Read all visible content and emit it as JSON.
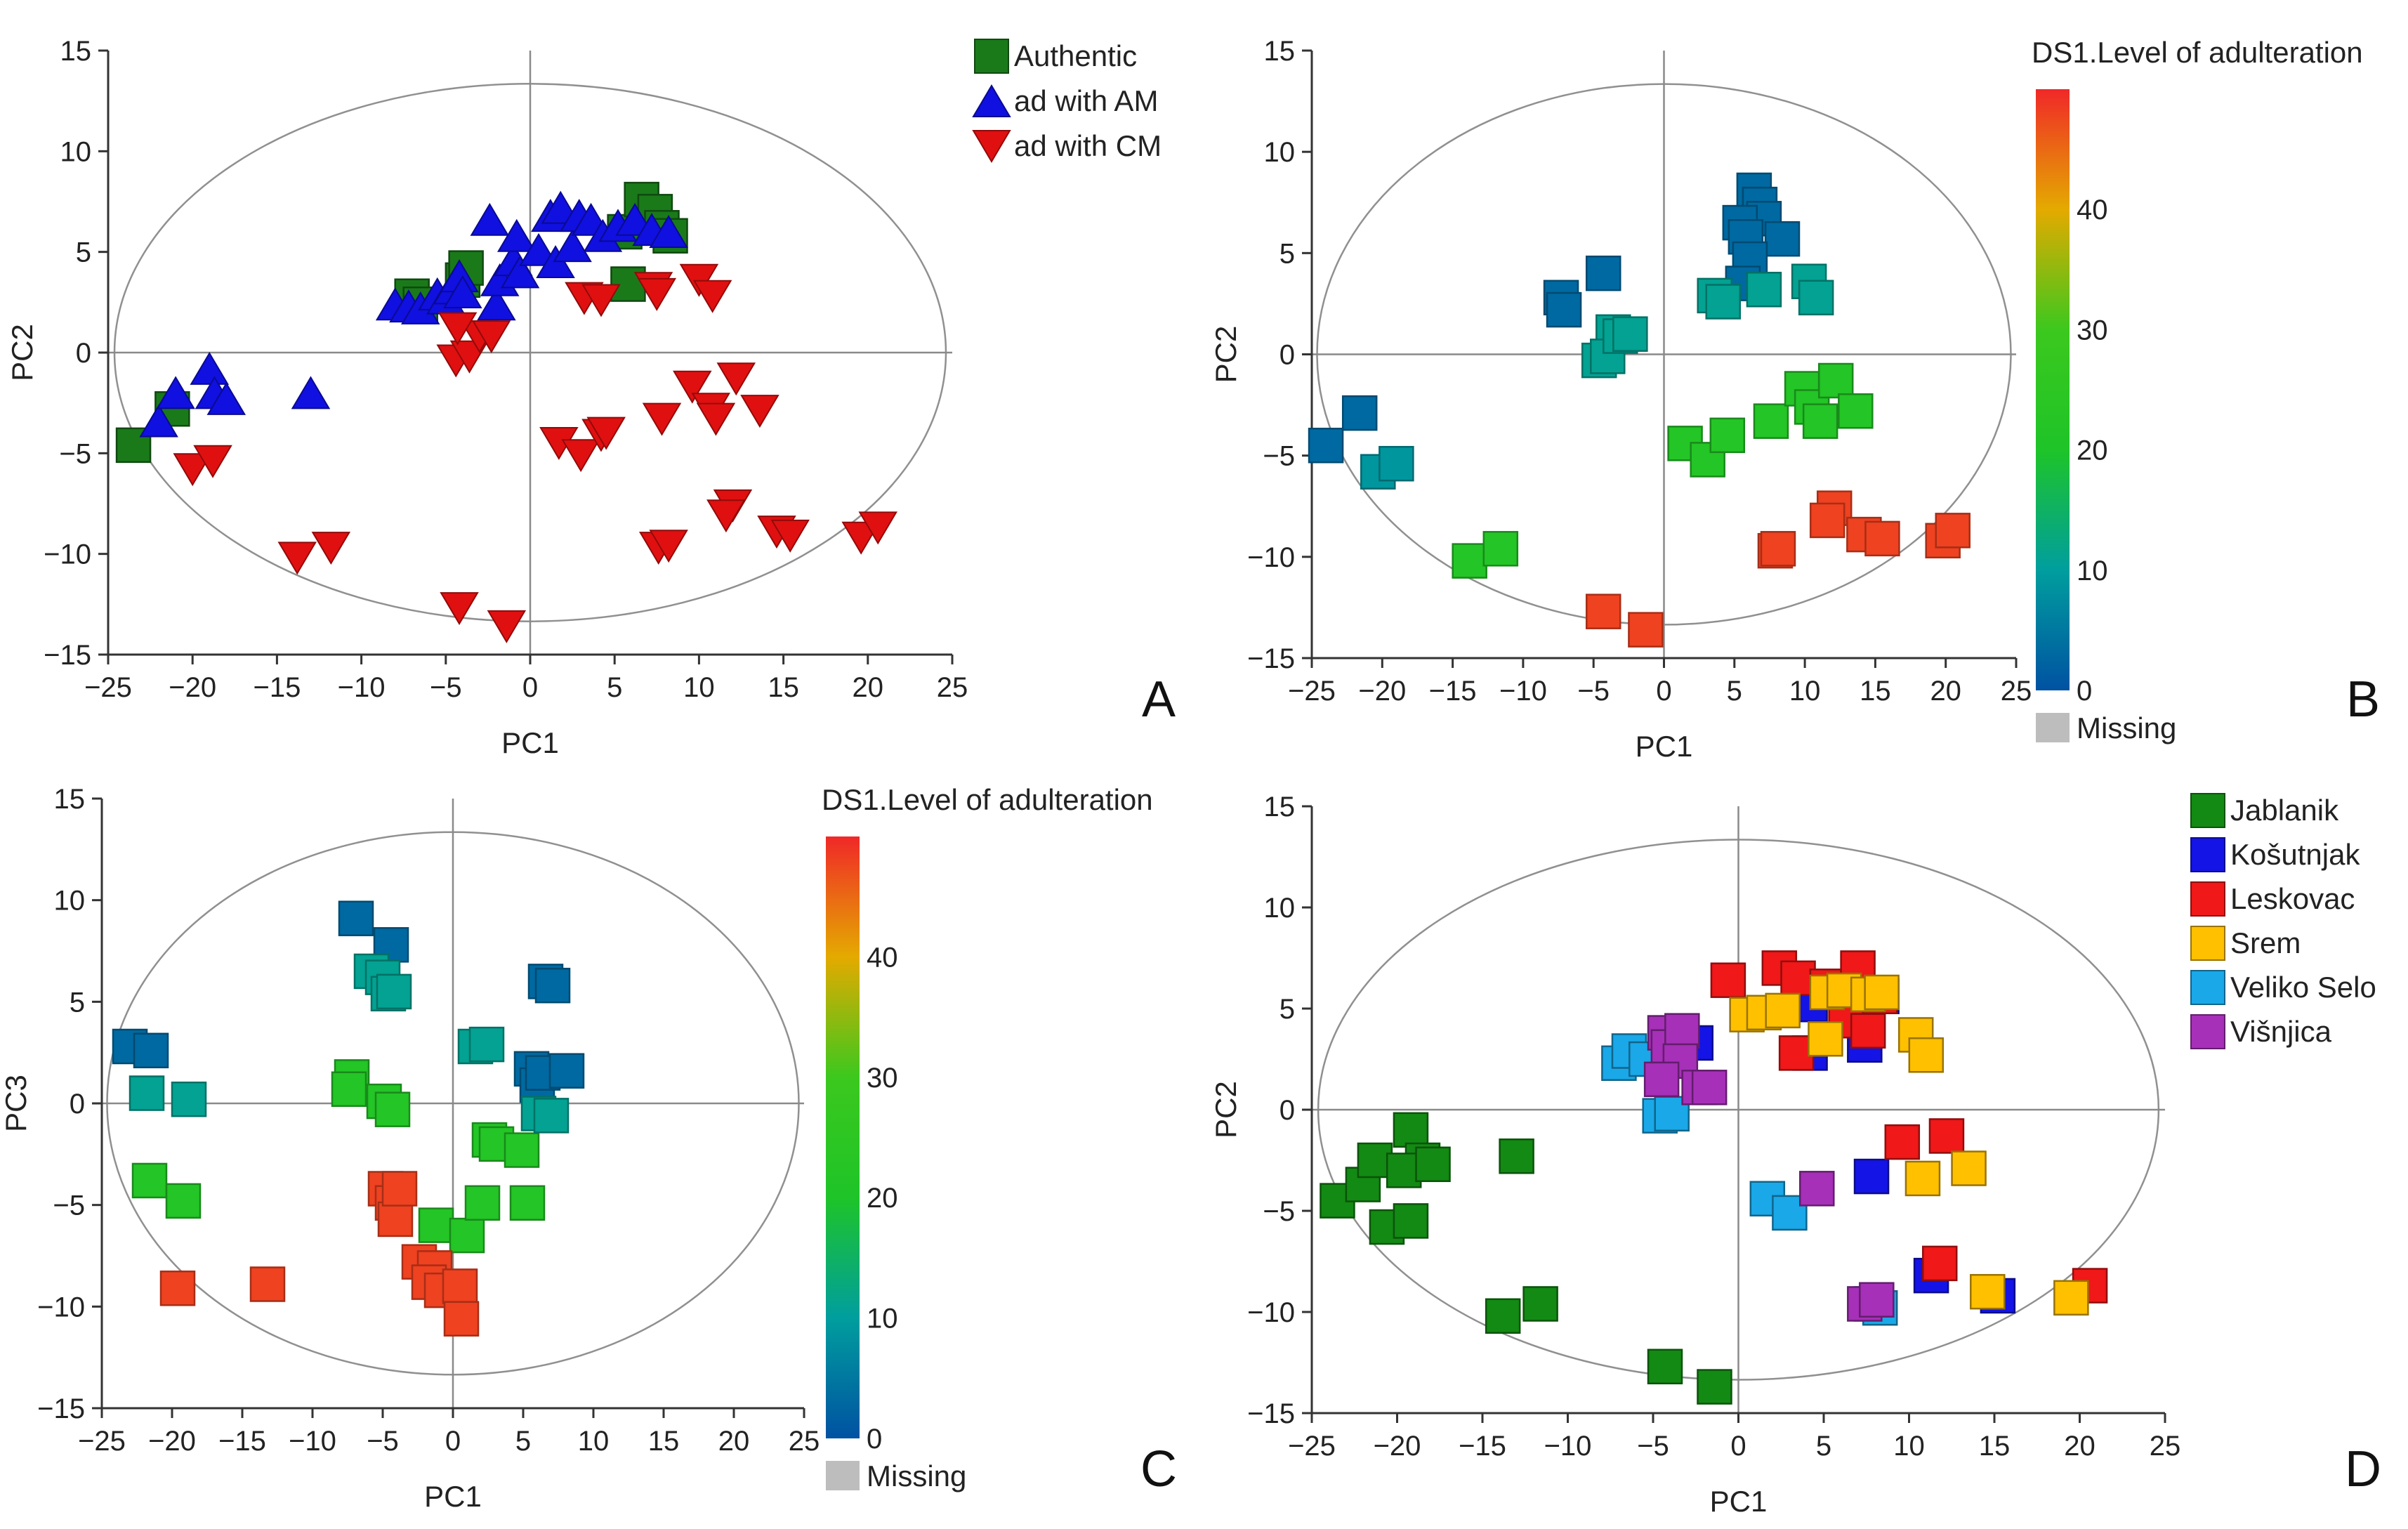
{
  "figure": {
    "panel_labels": [
      "A",
      "B",
      "C",
      "D"
    ]
  },
  "chart_data": [
    {
      "panel": "A",
      "type": "scatter",
      "xlabel": "PC1",
      "ylabel": "PC2",
      "xlim": [
        -25,
        25
      ],
      "ylim": [
        -15,
        15
      ],
      "xticks": [
        "−25",
        "−20",
        "−15",
        "−10",
        "−5",
        "0",
        "5",
        "10",
        "15",
        "20",
        "25"
      ],
      "yticks": [
        "−15",
        "−10",
        "−5",
        "0",
        "5",
        "10",
        "15"
      ],
      "legend": {
        "position": "top-right"
      },
      "series": [
        {
          "name": "Authentic",
          "marker": "square",
          "color": "#1a7a1a",
          "points": [
            [
              -23.5,
              -4.6
            ],
            [
              -21.2,
              -2.8
            ],
            [
              -7,
              2.8
            ],
            [
              -6.5,
              2.4
            ],
            [
              -4,
              3.6
            ],
            [
              -3.8,
              4.2
            ],
            [
              5.6,
              6
            ],
            [
              6.6,
              7.6
            ],
            [
              7.4,
              7
            ],
            [
              7.8,
              6.2
            ],
            [
              8.3,
              5.8
            ],
            [
              5.8,
              3.4
            ]
          ]
        },
        {
          "name": "ad with AM",
          "marker": "triangle-up",
          "color": "#1010e0",
          "points": [
            [
              -22,
              -3.4
            ],
            [
              -21,
              -2
            ],
            [
              -19,
              -0.8
            ],
            [
              -18.7,
              -2
            ],
            [
              -18,
              -2.3
            ],
            [
              -13,
              -2
            ],
            [
              -8,
              2.4
            ],
            [
              -7.2,
              2.3
            ],
            [
              -6.5,
              2.2
            ],
            [
              -5.5,
              2.9
            ],
            [
              -5,
              2.7
            ],
            [
              -4.6,
              3.2
            ],
            [
              -4.2,
              3.8
            ],
            [
              -4,
              3
            ],
            [
              -2,
              2.4
            ],
            [
              -1.8,
              3.6
            ],
            [
              -1,
              4.6
            ],
            [
              -0.6,
              4
            ],
            [
              -0.8,
              5.8
            ],
            [
              -2.4,
              6.6
            ],
            [
              0.5,
              5.1
            ],
            [
              1.5,
              4.5
            ],
            [
              1.2,
              6.8
            ],
            [
              1.8,
              7.2
            ],
            [
              2.5,
              5.3
            ],
            [
              2.9,
              6.8
            ],
            [
              3.6,
              6.6
            ],
            [
              4.3,
              5.8
            ],
            [
              5.2,
              6.3
            ],
            [
              6.2,
              6.6
            ],
            [
              7.2,
              6.1
            ],
            [
              8.2,
              6
            ]
          ]
        },
        {
          "name": "ad with CM",
          "marker": "triangle-down",
          "color": "#e01010",
          "points": [
            [
              -20,
              -5.8
            ],
            [
              -18.8,
              -5.4
            ],
            [
              -13.8,
              -10.2
            ],
            [
              -11.8,
              -9.7
            ],
            [
              -4.2,
              -12.7
            ],
            [
              -1.4,
              -13.6
            ],
            [
              -4.4,
              -0.4
            ],
            [
              -3.6,
              -0.2
            ],
            [
              -3,
              0.8
            ],
            [
              -2.3,
              0.8
            ],
            [
              -4.3,
              1.2
            ],
            [
              1.7,
              -4.5
            ],
            [
              3,
              -5.1
            ],
            [
              4.2,
              -4.1
            ],
            [
              4.5,
              -4
            ],
            [
              3.2,
              2.7
            ],
            [
              4.2,
              2.6
            ],
            [
              7.3,
              3.2
            ],
            [
              7.5,
              2.9
            ],
            [
              10,
              3.6
            ],
            [
              10.8,
              2.8
            ],
            [
              7.6,
              -9.7
            ],
            [
              8.2,
              -9.6
            ],
            [
              7.8,
              -3.3
            ],
            [
              9.6,
              -1.7
            ],
            [
              10.7,
              -2.8
            ],
            [
              11,
              -3.3
            ],
            [
              12.2,
              -1.3
            ],
            [
              13.6,
              -2.9
            ],
            [
              12,
              -7.6
            ],
            [
              11.6,
              -8.1
            ],
            [
              14.6,
              -8.9
            ],
            [
              15.4,
              -9.1
            ],
            [
              19.6,
              -9.2
            ],
            [
              20.6,
              -8.7
            ]
          ]
        }
      ]
    },
    {
      "panel": "B",
      "type": "scatter",
      "xlabel": "PC1",
      "ylabel": "PC2",
      "xlim": [
        -25,
        25
      ],
      "ylim": [
        -15,
        15
      ],
      "xticks": [
        "−25",
        "−20",
        "−15",
        "−10",
        "−5",
        "0",
        "5",
        "10",
        "15",
        "20",
        "25"
      ],
      "yticks": [
        "−15",
        "−10",
        "−5",
        "0",
        "5",
        "10",
        "15"
      ],
      "colorbar": {
        "title": "DS1.Level of adulteration",
        "min": 0,
        "max": 50,
        "ticks": [
          0,
          10,
          20,
          30,
          40
        ],
        "missing_label": "Missing"
      },
      "points": [
        [
          -24,
          -4.5,
          3
        ],
        [
          -21.6,
          -2.9,
          3
        ],
        [
          -20.3,
          -5.8,
          9
        ],
        [
          -19,
          -5.4,
          9
        ],
        [
          -7.3,
          2.8,
          3
        ],
        [
          -7.1,
          2.2,
          3
        ],
        [
          -4.3,
          4,
          3
        ],
        [
          -3.6,
          1.1,
          11
        ],
        [
          -4.6,
          -0.3,
          11
        ],
        [
          -4,
          -0.1,
          11
        ],
        [
          -3.1,
          0.9,
          11
        ],
        [
          -2.4,
          1,
          11
        ],
        [
          -13.8,
          -10.2,
          22
        ],
        [
          -11.6,
          -9.6,
          22
        ],
        [
          -4.3,
          -12.7,
          48
        ],
        [
          -1.3,
          -13.6,
          48
        ],
        [
          6.4,
          8.1,
          3
        ],
        [
          6.8,
          7.4,
          3
        ],
        [
          7.1,
          6.7,
          3
        ],
        [
          5.4,
          6.5,
          3
        ],
        [
          5.8,
          5.8,
          3
        ],
        [
          8.4,
          5.7,
          3
        ],
        [
          6.1,
          4.7,
          3
        ],
        [
          5.6,
          3.5,
          3
        ],
        [
          3.6,
          2.9,
          11
        ],
        [
          4.2,
          2.6,
          11
        ],
        [
          7.1,
          3.2,
          11
        ],
        [
          10.3,
          3.6,
          11
        ],
        [
          10.8,
          2.8,
          11
        ],
        [
          1.5,
          -4.4,
          22
        ],
        [
          3.1,
          -5.2,
          22
        ],
        [
          4.5,
          -4,
          22
        ],
        [
          7.6,
          -3.3,
          22
        ],
        [
          9.8,
          -1.7,
          22
        ],
        [
          10.5,
          -2.6,
          22
        ],
        [
          11.1,
          -3.3,
          22
        ],
        [
          12.2,
          -1.3,
          22
        ],
        [
          13.6,
          -2.8,
          22
        ],
        [
          7.9,
          -9.7,
          48
        ],
        [
          8.1,
          -9.6,
          48
        ],
        [
          12.1,
          -7.6,
          48
        ],
        [
          11.6,
          -8.2,
          48
        ],
        [
          14.2,
          -8.9,
          48
        ],
        [
          15.5,
          -9.1,
          48
        ],
        [
          19.8,
          -9.2,
          48
        ],
        [
          20.5,
          -8.7,
          48
        ]
      ]
    },
    {
      "panel": "C",
      "type": "scatter",
      "xlabel": "PC1",
      "ylabel": "PC3",
      "xlim": [
        -25,
        25
      ],
      "ylim": [
        -15,
        15
      ],
      "xticks": [
        "−25",
        "−20",
        "−15",
        "−10",
        "−5",
        "0",
        "5",
        "10",
        "15",
        "20",
        "25"
      ],
      "yticks": [
        "−15",
        "−10",
        "−5",
        "0",
        "5",
        "10",
        "15"
      ],
      "colorbar": {
        "title": "DS1.Level of adulteration",
        "min": 0,
        "max": 50,
        "ticks": [
          0,
          10,
          20,
          30,
          40
        ],
        "missing_label": "Missing"
      },
      "points": [
        [
          -23,
          2.8,
          3
        ],
        [
          -21.5,
          2.6,
          3
        ],
        [
          -21.8,
          0.5,
          11
        ],
        [
          -18.8,
          0.2,
          11
        ],
        [
          -21.6,
          -3.8,
          22
        ],
        [
          -19.2,
          -4.8,
          22
        ],
        [
          -19.6,
          -9.1,
          48
        ],
        [
          -13.2,
          -8.9,
          48
        ],
        [
          -6.9,
          9.1,
          3
        ],
        [
          -4.4,
          7.8,
          3
        ],
        [
          -5.8,
          6.5,
          11
        ],
        [
          -5,
          6.2,
          11
        ],
        [
          -4.6,
          5.4,
          11
        ],
        [
          -4.2,
          5.5,
          11
        ],
        [
          -7.2,
          1.3,
          22
        ],
        [
          -7.4,
          0.7,
          22
        ],
        [
          -4.9,
          0.1,
          22
        ],
        [
          -4.3,
          -0.3,
          22
        ],
        [
          -4.8,
          -4.2,
          48
        ],
        [
          -4.3,
          -4.9,
          48
        ],
        [
          -4.1,
          -5.7,
          48
        ],
        [
          -3.8,
          -4.2,
          48
        ],
        [
          -1.2,
          -6,
          22
        ],
        [
          1,
          -6.5,
          22
        ],
        [
          2.1,
          -4.9,
          22
        ],
        [
          5.3,
          -4.9,
          22
        ],
        [
          -2.4,
          -7.8,
          48
        ],
        [
          -1.3,
          -8.1,
          48
        ],
        [
          -1.7,
          -8.8,
          48
        ],
        [
          -0.8,
          -9.2,
          48
        ],
        [
          0.5,
          -9,
          48
        ],
        [
          0.6,
          -10.6,
          48
        ],
        [
          1.6,
          2.8,
          11
        ],
        [
          2.4,
          2.9,
          11
        ],
        [
          2.6,
          -1.8,
          22
        ],
        [
          3.1,
          -2,
          22
        ],
        [
          4.9,
          -2.3,
          22
        ],
        [
          5.6,
          1.7,
          3
        ],
        [
          6,
          0.9,
          3
        ],
        [
          6.4,
          1.5,
          3
        ],
        [
          8.1,
          1.6,
          3
        ],
        [
          6.1,
          -0.5,
          11
        ],
        [
          7,
          -0.6,
          11
        ],
        [
          6.6,
          6,
          3
        ],
        [
          7.1,
          5.8,
          3
        ]
      ]
    },
    {
      "panel": "D",
      "type": "scatter",
      "xlabel": "PC1",
      "ylabel": "PC2",
      "xlim": [
        -25,
        25
      ],
      "ylim": [
        -15,
        15
      ],
      "xticks": [
        "−25",
        "−20",
        "−15",
        "−10",
        "−5",
        "0",
        "5",
        "10",
        "15",
        "20",
        "25"
      ],
      "yticks": [
        "−15",
        "−10",
        "−5",
        "0",
        "5",
        "10",
        "15"
      ],
      "legend": {
        "position": "top-right"
      },
      "series": [
        {
          "name": "Jablanik",
          "color": "#138a13",
          "points": [
            [
              -23.5,
              -4.5
            ],
            [
              -22,
              -3.7
            ],
            [
              -21.3,
              -2.5
            ],
            [
              -20.6,
              -5.8
            ],
            [
              -19.2,
              -5.5
            ],
            [
              -19.2,
              -1
            ],
            [
              -18.5,
              -2.5
            ],
            [
              -19.6,
              -3
            ],
            [
              -17.9,
              -2.7
            ],
            [
              -13,
              -2.3
            ],
            [
              -13.8,
              -10.2
            ],
            [
              -11.6,
              -9.6
            ],
            [
              -4.3,
              -12.7
            ],
            [
              -1.4,
              -13.7
            ]
          ]
        },
        {
          "name": "Košutnjak",
          "color": "#1414e6",
          "points": [
            [
              -2.5,
              3.3
            ],
            [
              4.2,
              5.2
            ],
            [
              4.2,
              2.8
            ],
            [
              7.4,
              3.2
            ],
            [
              8.4,
              5.6
            ],
            [
              7.8,
              -3.3
            ],
            [
              11.3,
              -8.2
            ],
            [
              15.2,
              -9.2
            ]
          ]
        },
        {
          "name": "Leskovac",
          "color": "#f01818",
          "points": [
            [
              -0.6,
              6.4
            ],
            [
              2.4,
              7
            ],
            [
              3.5,
              6.5
            ],
            [
              5.2,
              6.1
            ],
            [
              7,
              7
            ],
            [
              8.3,
              5.6
            ],
            [
              6.3,
              4.4
            ],
            [
              7.6,
              3.9
            ],
            [
              3.4,
              2.8
            ],
            [
              9.6,
              -1.6
            ],
            [
              12.2,
              -1.3
            ],
            [
              11.8,
              -7.6
            ],
            [
              20.6,
              -8.7
            ]
          ]
        },
        {
          "name": "Srem",
          "color": "#ffc000",
          "points": [
            [
              0.5,
              4.7
            ],
            [
              1.5,
              4.8
            ],
            [
              2.6,
              4.9
            ],
            [
              5.2,
              5.8
            ],
            [
              6.2,
              5.9
            ],
            [
              7.6,
              5.7
            ],
            [
              8.4,
              5.8
            ],
            [
              5.1,
              3.5
            ],
            [
              10.4,
              3.7
            ],
            [
              11,
              2.7
            ],
            [
              10.8,
              -3.4
            ],
            [
              13.5,
              -2.9
            ],
            [
              14.6,
              -9
            ],
            [
              19.5,
              -9.3
            ]
          ]
        },
        {
          "name": "Veliko Selo",
          "color": "#1aa8e8",
          "points": [
            [
              -7,
              2.3
            ],
            [
              -6.4,
              2.9
            ],
            [
              -5.4,
              2.5
            ],
            [
              -4.6,
              -0.3
            ],
            [
              -3.9,
              -0.2
            ],
            [
              1.7,
              -4.4
            ],
            [
              3,
              -5.1
            ],
            [
              7.8,
              -9.6
            ],
            [
              8.3,
              -9.8
            ]
          ]
        },
        {
          "name": "Višnjica",
          "color": "#a630b8",
          "points": [
            [
              -4.3,
              3.8
            ],
            [
              -4.1,
              3.1
            ],
            [
              -3.3,
              3.9
            ],
            [
              -3.4,
              2.4
            ],
            [
              -4.5,
              1.5
            ],
            [
              -2.3,
              1.1
            ],
            [
              -1.7,
              1.1
            ],
            [
              4.6,
              -3.9
            ],
            [
              7.4,
              -9.6
            ],
            [
              8.1,
              -9.4
            ]
          ]
        }
      ]
    }
  ]
}
